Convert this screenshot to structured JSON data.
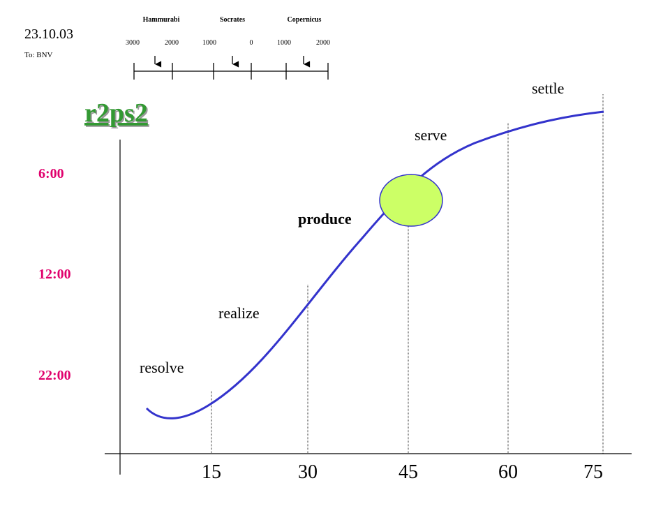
{
  "header": {
    "date": "23.10.03",
    "to": "To: BNV"
  },
  "timeline": {
    "names": [
      "Hammurabi",
      "Socrates",
      "Copernicus"
    ],
    "ticks": [
      "3000",
      "2000",
      "1000",
      "0",
      "1000",
      "2000"
    ]
  },
  "title": "r2ps2",
  "y_labels": [
    "6:00",
    "12:00",
    "22:00"
  ],
  "x_labels": [
    "15",
    "30",
    "45",
    "60",
    "75"
  ],
  "phases": [
    "resolve",
    "realize",
    "produce",
    "serve",
    "settle"
  ]
}
